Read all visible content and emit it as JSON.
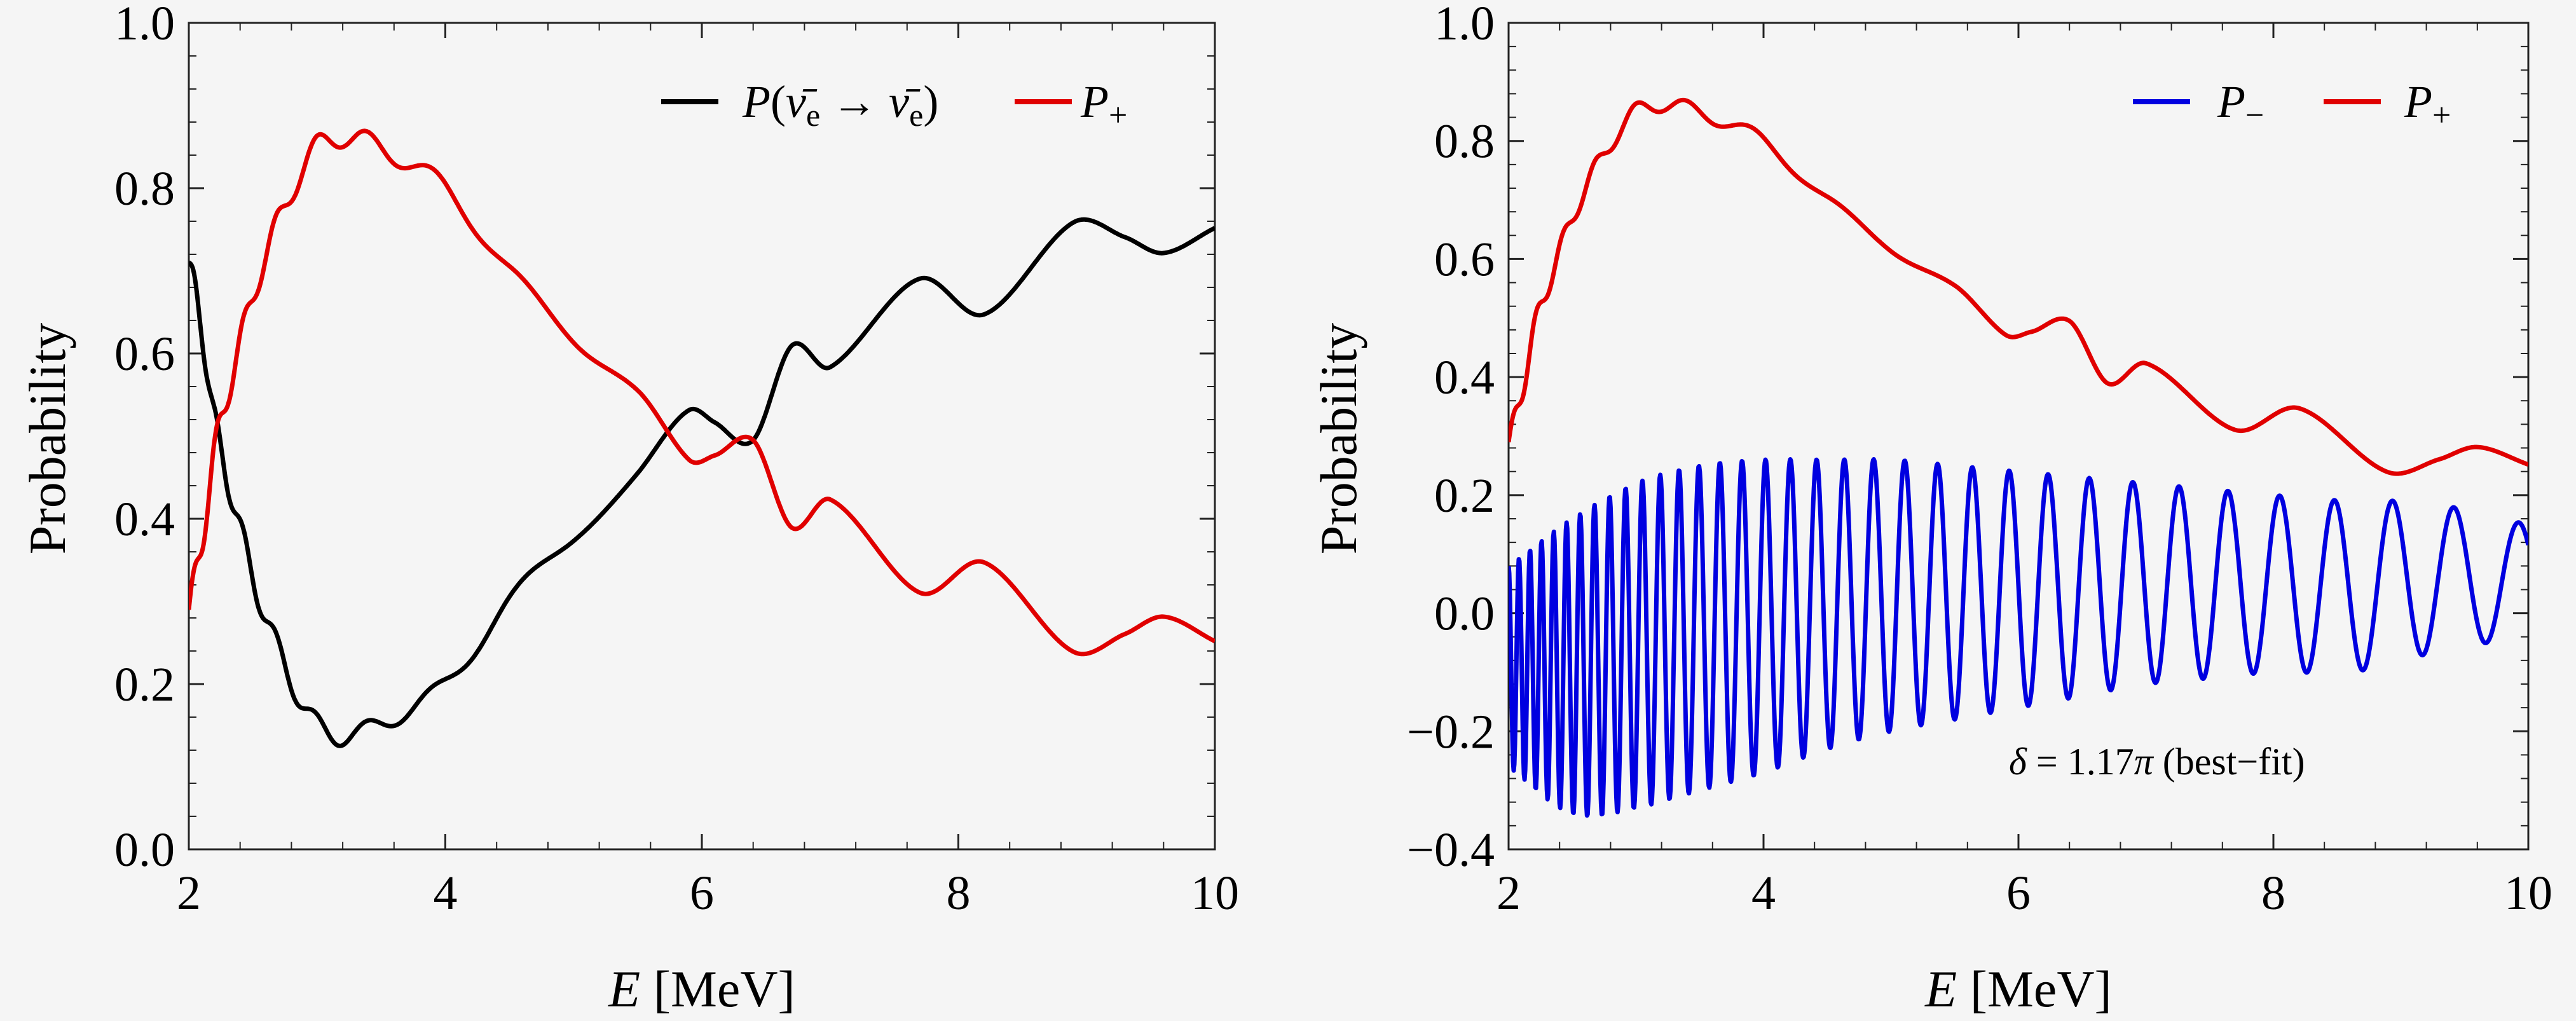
{
  "chart_data": [
    {
      "type": "line",
      "xlabel": "E [MeV]",
      "ylabel": "Probability",
      "xlim": [
        2,
        10
      ],
      "ylim": [
        0.0,
        1.0
      ],
      "xticks": [
        "2",
        "4",
        "6",
        "8",
        "10"
      ],
      "yticks": [
        "0.0",
        "0.2",
        "0.4",
        "0.6",
        "0.8",
        "1.0"
      ],
      "legend_position": "top-right",
      "grid": false,
      "series": [
        {
          "name": "P(ν̄e → ν̄e)",
          "color": "#000000",
          "x": [
            2.0,
            2.1,
            2.2,
            2.3,
            2.5,
            2.7,
            3.0,
            3.3,
            3.6,
            4.0,
            4.5,
            5.0,
            5.5,
            5.9,
            6.1,
            6.4,
            6.7,
            7.0,
            7.7,
            8.2,
            8.9,
            9.3,
            9.6,
            10.0
          ],
          "y": [
            0.71,
            0.63,
            0.52,
            0.45,
            0.33,
            0.24,
            0.15,
            0.14,
            0.16,
            0.2,
            0.3,
            0.38,
            0.45,
            0.53,
            0.52,
            0.5,
            0.61,
            0.58,
            0.69,
            0.65,
            0.76,
            0.74,
            0.72,
            0.75
          ]
        },
        {
          "name": "P+",
          "color": "#e00000",
          "x": [
            2.0,
            2.1,
            2.2,
            2.3,
            2.5,
            2.7,
            3.0,
            3.3,
            3.6,
            4.0,
            4.5,
            5.0,
            5.5,
            5.9,
            6.1,
            6.4,
            6.7,
            7.0,
            7.7,
            8.2,
            8.9,
            9.3,
            9.6,
            10.0
          ],
          "y": [
            0.29,
            0.37,
            0.48,
            0.55,
            0.67,
            0.76,
            0.85,
            0.86,
            0.84,
            0.8,
            0.7,
            0.62,
            0.55,
            0.47,
            0.48,
            0.5,
            0.39,
            0.42,
            0.31,
            0.35,
            0.24,
            0.26,
            0.28,
            0.25
          ]
        }
      ]
    },
    {
      "type": "line",
      "xlabel": "E [MeV]",
      "ylabel": "Probability",
      "xlim": [
        2,
        10
      ],
      "ylim": [
        -0.4,
        1.0
      ],
      "xticks": [
        "2",
        "4",
        "6",
        "8",
        "10"
      ],
      "yticks": [
        "−0.4",
        "−0.2",
        "0.0",
        "0.2",
        "0.4",
        "0.6",
        "0.8",
        "1.0"
      ],
      "legend_position": "top-right",
      "grid": false,
      "annotation": "δ = 1.17π (best−fit)",
      "series": [
        {
          "name": "P−",
          "color": "#0000e0",
          "x": [
            2.0,
            2.5,
            3.0,
            3.5,
            4.0,
            4.5,
            5.0,
            5.5,
            6.0,
            6.5,
            7.0,
            7.5,
            8.0,
            8.6,
            9.0,
            9.4,
            10.0
          ],
          "y_envelope_upper": [
            0.08,
            0.16,
            0.22,
            0.25,
            0.26,
            0.26,
            0.26,
            0.25,
            0.24,
            0.23,
            0.22,
            0.21,
            0.2,
            0.19,
            0.19,
            0.18,
            0.15
          ],
          "y_envelope_lower": [
            -0.26,
            -0.34,
            -0.33,
            -0.3,
            -0.27,
            -0.23,
            -0.2,
            -0.18,
            -0.16,
            -0.14,
            -0.12,
            -0.11,
            -0.1,
            -0.1,
            -0.08,
            -0.06,
            -0.04
          ]
        },
        {
          "name": "P+",
          "color": "#e00000",
          "x": [
            2.0,
            2.1,
            2.2,
            2.3,
            2.5,
            2.7,
            3.0,
            3.3,
            3.6,
            4.0,
            4.5,
            5.0,
            5.5,
            5.9,
            6.1,
            6.4,
            6.7,
            7.0,
            7.7,
            8.2,
            8.9,
            9.3,
            9.6,
            10.0
          ],
          "y": [
            0.29,
            0.37,
            0.48,
            0.55,
            0.67,
            0.76,
            0.85,
            0.86,
            0.84,
            0.8,
            0.7,
            0.62,
            0.55,
            0.47,
            0.48,
            0.5,
            0.39,
            0.42,
            0.31,
            0.35,
            0.24,
            0.26,
            0.28,
            0.25
          ]
        }
      ]
    }
  ]
}
